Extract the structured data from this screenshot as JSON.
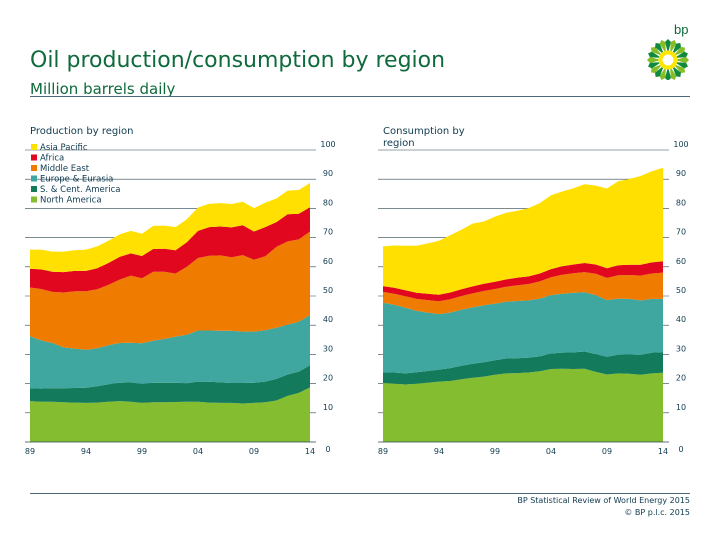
{
  "header": {
    "title": "Oil production/consumption by region",
    "subtitle": "Million barrels daily",
    "logo_text": "bp"
  },
  "footer": {
    "source": "BP Statistical Review of World Energy 2015",
    "copyright": "© BP p.l.c. 2015"
  },
  "colors": {
    "title_green": "#0f6a3c",
    "asia_pacific": "#ffe000",
    "africa": "#e0071f",
    "middle_east": "#ef7b00",
    "europe_eurasia": "#3fa7a0",
    "s_cent_america": "#137a5c",
    "north_america": "#84bd2f"
  },
  "chart_data": [
    {
      "type": "area",
      "stacked": true,
      "title": "Production by region",
      "x": [
        1989,
        1990,
        1991,
        1992,
        1993,
        1994,
        1995,
        1996,
        1997,
        1998,
        1999,
        2000,
        2001,
        2002,
        2003,
        2004,
        2005,
        2006,
        2007,
        2008,
        2009,
        2010,
        2011,
        2012,
        2013,
        2014
      ],
      "xticks": [
        "89",
        "94",
        "99",
        "04",
        "09",
        "14"
      ],
      "yticks": [
        "0",
        "10",
        "20",
        "30",
        "40",
        "50",
        "60",
        "70",
        "80",
        "90",
        "100"
      ],
      "ylim": [
        0,
        100
      ],
      "legend_position": "top-left",
      "series": [
        {
          "name": "North America",
          "values": [
            14,
            13.8,
            13.8,
            13.6,
            13.5,
            13.4,
            13.5,
            13.8,
            14,
            13.8,
            13.4,
            13.6,
            13.6,
            13.7,
            13.8,
            13.8,
            13.5,
            13.4,
            13.4,
            13.2,
            13.4,
            13.6,
            14.2,
            15.8,
            16.8,
            18.7
          ]
        },
        {
          "name": "S. & Cent. America",
          "values": [
            4.4,
            4.5,
            4.6,
            4.8,
            5,
            5.2,
            5.6,
            6,
            6.3,
            6.6,
            6.5,
            6.7,
            6.7,
            6.6,
            6.3,
            6.9,
            7.1,
            7,
            6.8,
            7,
            6.9,
            7.1,
            7.4,
            7.3,
            7.3,
            7.6
          ]
        },
        {
          "name": "Europe & Eurasia",
          "values": [
            17.8,
            16.5,
            15.5,
            14,
            13.5,
            13,
            13,
            13.3,
            13.6,
            13.6,
            13.9,
            14.4,
            15,
            15.8,
            16.6,
            17.5,
            17.6,
            17.7,
            17.9,
            17.6,
            17.5,
            17.6,
            17.5,
            17.1,
            17.1,
            17.2
          ]
        },
        {
          "name": "Middle East",
          "values": [
            16.7,
            17.6,
            17.5,
            18.8,
            19.6,
            20,
            20.2,
            20.7,
            21.7,
            23,
            22.3,
            23.6,
            23,
            21.6,
            23.3,
            24.8,
            25.6,
            25.8,
            25.2,
            26.2,
            24.6,
            25.3,
            27.7,
            28.5,
            28.2,
            28.6
          ]
        },
        {
          "name": "Africa",
          "values": [
            6.4,
            6.7,
            6.9,
            7,
            7,
            7,
            7.2,
            7.5,
            7.8,
            7.6,
            7.6,
            7.8,
            7.9,
            8,
            8.4,
            9.3,
            9.8,
            9.9,
            10.2,
            10.2,
            9.7,
            10,
            8.5,
            9.3,
            8.8,
            8.3
          ]
        },
        {
          "name": "Asia Pacific",
          "values": [
            6.6,
            6.8,
            6.9,
            7,
            7.1,
            7.3,
            7.5,
            7.6,
            7.7,
            7.7,
            7.6,
            7.9,
            7.9,
            7.9,
            7.9,
            8,
            8,
            8,
            8,
            8.1,
            8,
            8.4,
            8.1,
            8.1,
            8.1,
            8.3
          ]
        }
      ]
    },
    {
      "type": "area",
      "stacked": true,
      "title": "Consumption by region",
      "x": [
        1989,
        1990,
        1991,
        1992,
        1993,
        1994,
        1995,
        1996,
        1997,
        1998,
        1999,
        2000,
        2001,
        2002,
        2003,
        2004,
        2005,
        2006,
        2007,
        2008,
        2009,
        2010,
        2011,
        2012,
        2013,
        2014
      ],
      "xticks": [
        "89",
        "94",
        "99",
        "04",
        "09",
        "14"
      ],
      "yticks": [
        "0",
        "10",
        "20",
        "30",
        "40",
        "50",
        "60",
        "70",
        "80",
        "90",
        "100"
      ],
      "ylim": [
        0,
        100
      ],
      "series": [
        {
          "name": "North America",
          "values": [
            20.2,
            20,
            19.7,
            20,
            20.3,
            20.7,
            20.9,
            21.5,
            22,
            22.4,
            23,
            23.5,
            23.6,
            23.8,
            24.2,
            25,
            25.1,
            25,
            25.1,
            24,
            23.1,
            23.5,
            23.4,
            23,
            23.5,
            23.7
          ]
        },
        {
          "name": "S. & Cent. America",
          "values": [
            3.7,
            3.8,
            3.8,
            3.9,
            4,
            4.1,
            4.4,
            4.6,
            4.8,
            4.9,
            5,
            5.1,
            5.1,
            5.1,
            5.1,
            5.3,
            5.5,
            5.7,
            5.9,
            6.1,
            6.1,
            6.4,
            6.6,
            6.8,
            7.1,
            7.1
          ]
        },
        {
          "name": "Europe & Eurasia",
          "values": [
            23.8,
            23.2,
            22.5,
            21,
            20,
            19,
            19,
            19.2,
            19.3,
            19.5,
            19.4,
            19.4,
            19.6,
            19.6,
            19.8,
            20,
            20.2,
            20.4,
            20.3,
            20.2,
            19.4,
            19.2,
            19,
            18.7,
            18.4,
            18.2
          ]
        },
        {
          "name": "Middle East",
          "values": [
            3.7,
            3.8,
            3.9,
            4.1,
            4.3,
            4.4,
            4.6,
            4.7,
            4.8,
            4.9,
            5,
            5.2,
            5.4,
            5.6,
            5.9,
            6.1,
            6.5,
            6.7,
            6.9,
            7.3,
            7.6,
            8,
            8.2,
            8.5,
            8.7,
            9
          ]
        },
        {
          "name": "Africa",
          "values": [
            2,
            2,
            2.1,
            2.1,
            2.2,
            2.2,
            2.3,
            2.3,
            2.4,
            2.5,
            2.5,
            2.5,
            2.6,
            2.6,
            2.7,
            2.8,
            2.9,
            3,
            3.1,
            3.2,
            3.3,
            3.4,
            3.5,
            3.7,
            3.8,
            3.9
          ]
        },
        {
          "name": "Asia Pacific",
          "values": [
            13.6,
            14.5,
            15.2,
            16.1,
            17.2,
            18.5,
            19.6,
            20.4,
            21.5,
            21.3,
            22.3,
            22.8,
            22.9,
            23.4,
            24.1,
            25.3,
            25.6,
            26.1,
            27,
            27,
            27.3,
            28.8,
            29.4,
            30.4,
            31.2,
            32
          ]
        }
      ]
    }
  ]
}
